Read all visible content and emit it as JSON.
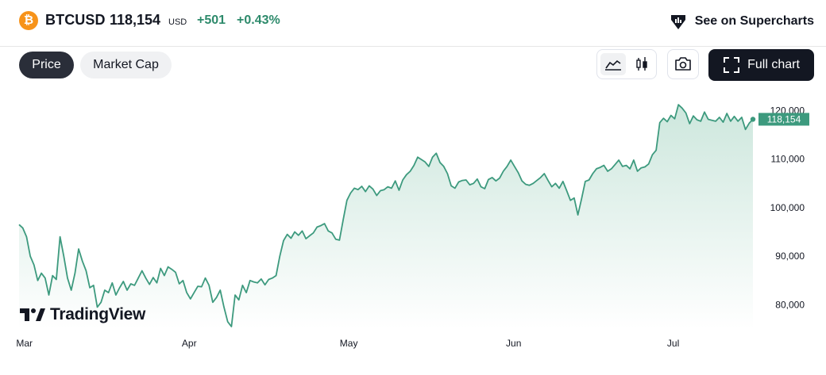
{
  "header": {
    "coin_glyph": "₿",
    "symbol": "BTCUSD",
    "price": "118,154",
    "currency": "USD",
    "change": "+501",
    "change_pct": "+0.43%",
    "supercharts_label": "See on Supercharts"
  },
  "tabs": [
    {
      "label": "Price",
      "active": true
    },
    {
      "label": "Market Cap",
      "active": false
    }
  ],
  "toolbar": {
    "chart_style_active": "line",
    "full_chart_label": "Full chart"
  },
  "branding": {
    "logo_text": "TradingView"
  },
  "colors": {
    "line": "#3d9a7e",
    "fill_top": "#cde7dd",
    "fill_bottom": "#ffffff",
    "positive": "#2d8a6b",
    "accent_coin": "#f7931a"
  },
  "chart_data": {
    "type": "area",
    "series": [
      {
        "values": [
          96500,
          95800,
          94000,
          90000,
          88200,
          85000,
          86500,
          85500,
          82000,
          86000,
          85200,
          94000,
          90000,
          85500,
          83000,
          86500,
          91500,
          89000,
          87000,
          83500,
          84000,
          79500,
          80500,
          83000,
          82500,
          84500,
          82000,
          83500,
          84800,
          83000,
          84300,
          84000,
          85500,
          87000,
          85500,
          84200,
          85600,
          84500,
          87500,
          86000,
          87800,
          87300,
          86700,
          84300,
          85000,
          82500,
          81200,
          82500,
          83800,
          83700,
          85500,
          84000,
          80500,
          81500,
          83000,
          79500,
          76500,
          75500,
          82000,
          81000,
          84000,
          82500,
          85000,
          84700,
          84500,
          85300,
          84100,
          85200,
          85500,
          86000,
          90000,
          93200,
          94500,
          93700,
          95000,
          94300,
          95200,
          93600,
          94200,
          94800,
          96000,
          96300,
          96700,
          95200,
          94800,
          93500,
          93300,
          97500,
          101500,
          103000,
          104000,
          103700,
          104400,
          103300,
          104500,
          103800,
          102500,
          103500,
          103700,
          104300,
          104000,
          105500,
          103600,
          105700,
          106800,
          107500,
          108700,
          110400,
          109900,
          109400,
          108500,
          110400,
          111200,
          109300,
          108500,
          107000,
          104500,
          104000,
          105300,
          105600,
          105700,
          104700,
          105000,
          105900,
          104300,
          103900,
          105800,
          106200,
          105500,
          106100,
          107500,
          108500,
          109800,
          108500,
          107200,
          105500,
          104800,
          104600,
          105000,
          105600,
          106200,
          107000,
          105600,
          104300,
          105000,
          104000,
          105400,
          103500,
          101500,
          102000,
          98500,
          101800,
          105400,
          105700,
          107000,
          108000,
          108300,
          108700,
          107500,
          108000,
          108900,
          109800,
          108500,
          108700,
          108000,
          109800,
          107500,
          108200,
          108400,
          109000,
          110900,
          111800,
          117500,
          118400,
          117700,
          119000,
          118300,
          121200,
          120500,
          119500,
          117300,
          118900,
          118100,
          117800,
          119700,
          118200,
          118000,
          117800,
          118600,
          117600,
          119400,
          117800,
          118800,
          117800,
          118600,
          116100,
          117400,
          118200
        ],
        "x_start": "2025-02-28",
        "x_end": "2025-07-16"
      }
    ],
    "x_tick_labels": [
      "Mar",
      "Apr",
      "May",
      "Jun",
      "Jul"
    ],
    "y_ticks": [
      80000,
      90000,
      100000,
      110000,
      120000
    ],
    "y_tick_labels": [
      "80,000",
      "90,000",
      "100,000",
      "110,000",
      "120,000"
    ],
    "ylim": [
      75000,
      123500
    ],
    "last_value_label": "118,154",
    "grid": false,
    "axis_position": "right"
  }
}
